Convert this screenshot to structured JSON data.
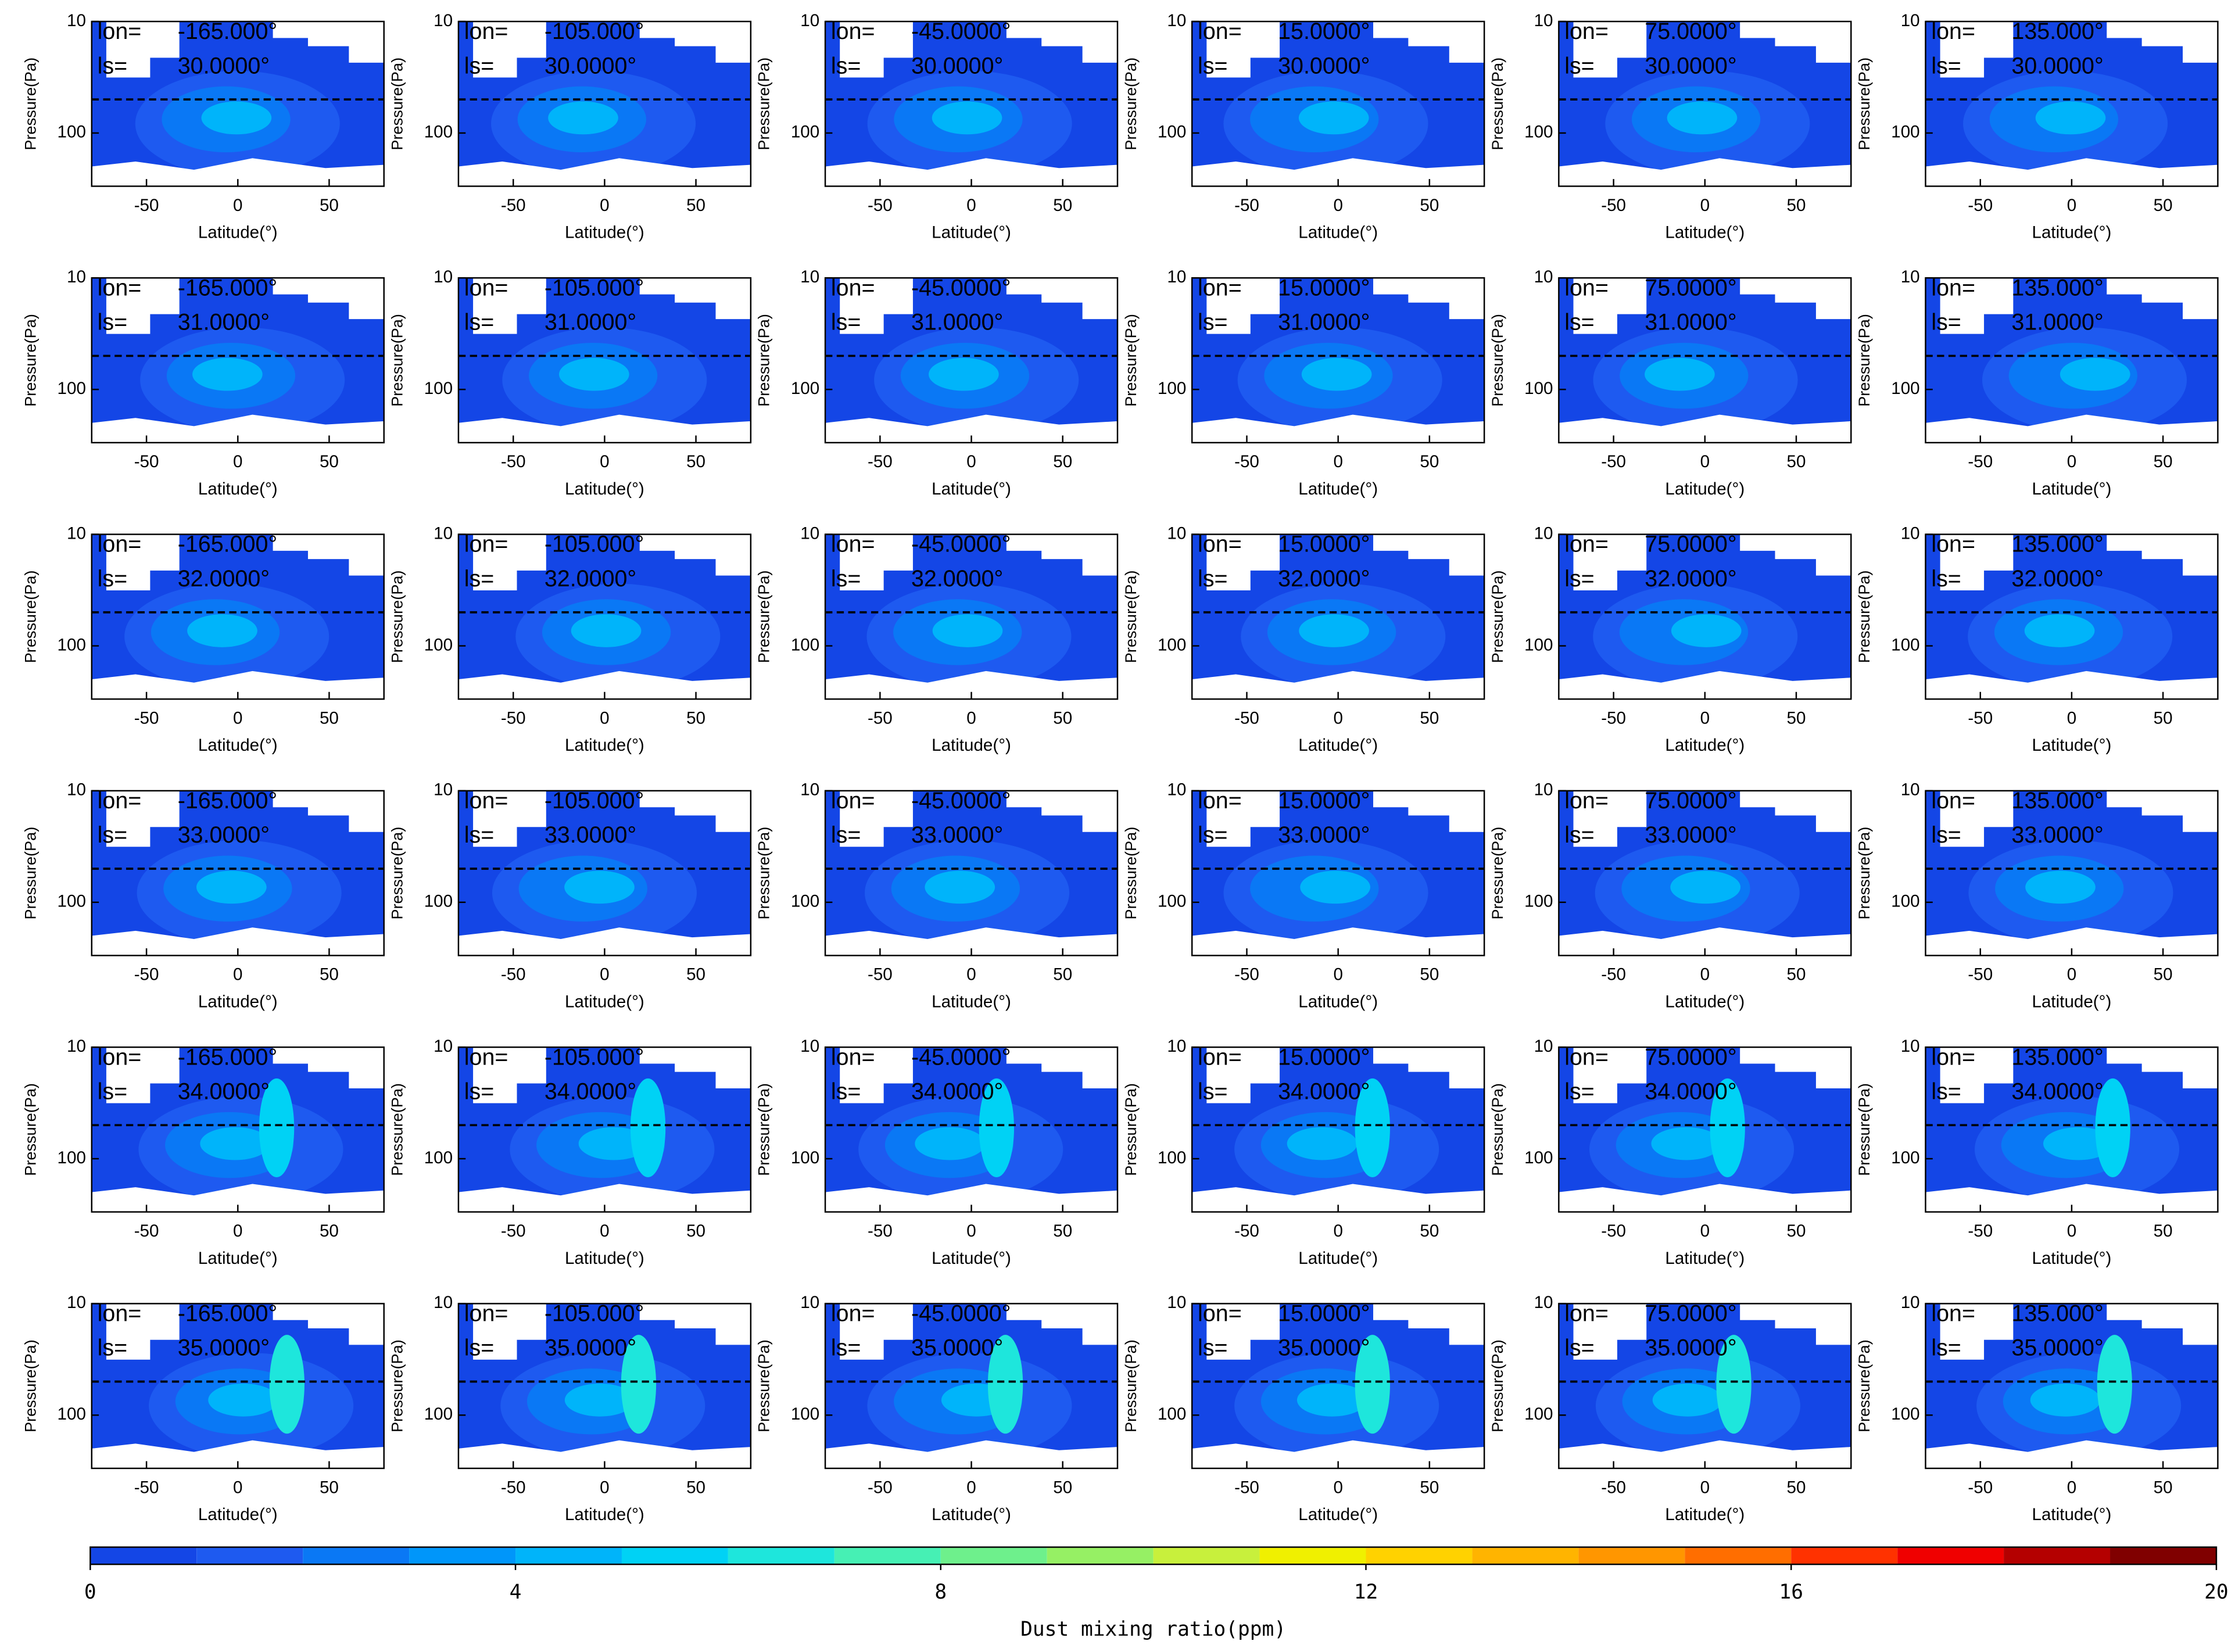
{
  "chart_data": [
    {
      "type": "contour",
      "lon_label": "lon=",
      "lon": "-165.000°",
      "ls_label": "ls=",
      "ls": "30.0000°",
      "xlabel": "Latitude(°)",
      "ylabel": "Pressure(Pa)",
      "xlim": [
        -80,
        80
      ],
      "xticks": [
        -50,
        0,
        50
      ],
      "ylim": [
        300,
        10
      ],
      "yticks": [
        10,
        100
      ],
      "log_y": true,
      "hline": 50
    },
    {
      "type": "contour",
      "lon_label": "lon=",
      "lon": "-105.000°",
      "ls_label": "ls=",
      "ls": "30.0000°",
      "xlabel": "Latitude(°)",
      "ylabel": "Pressure(Pa)",
      "xlim": [
        -80,
        80
      ],
      "xticks": [
        -50,
        0,
        50
      ],
      "ylim": [
        300,
        10
      ],
      "yticks": [
        10,
        100
      ],
      "log_y": true,
      "hline": 50
    },
    {
      "type": "contour",
      "lon_label": "lon=",
      "lon": "-45.0000°",
      "ls_label": "ls=",
      "ls": "30.0000°",
      "xlabel": "Latitude(°)",
      "ylabel": "Pressure(Pa)",
      "xlim": [
        -80,
        80
      ],
      "xticks": [
        -50,
        0,
        50
      ],
      "ylim": [
        300,
        10
      ],
      "yticks": [
        10,
        100
      ],
      "log_y": true,
      "hline": 50
    },
    {
      "type": "contour",
      "lon_label": "lon=",
      "lon": "15.0000°",
      "ls_label": "ls=",
      "ls": "30.0000°",
      "xlabel": "Latitude(°)",
      "ylabel": "Pressure(Pa)",
      "xlim": [
        -80,
        80
      ],
      "xticks": [
        -50,
        0,
        50
      ],
      "ylim": [
        300,
        10
      ],
      "yticks": [
        10,
        100
      ],
      "log_y": true,
      "hline": 50
    },
    {
      "type": "contour",
      "lon_label": "lon=",
      "lon": "75.0000°",
      "ls_label": "ls=",
      "ls": "30.0000°",
      "xlabel": "Latitude(°)",
      "ylabel": "Pressure(Pa)",
      "xlim": [
        -80,
        80
      ],
      "xticks": [
        -50,
        0,
        50
      ],
      "ylim": [
        300,
        10
      ],
      "yticks": [
        10,
        100
      ],
      "log_y": true,
      "hline": 50
    },
    {
      "type": "contour",
      "lon_label": "lon=",
      "lon": "135.000°",
      "ls_label": "ls=",
      "ls": "30.0000°",
      "xlabel": "Latitude(°)",
      "ylabel": "Pressure(Pa)",
      "xlim": [
        -80,
        80
      ],
      "xticks": [
        -50,
        0,
        50
      ],
      "ylim": [
        300,
        10
      ],
      "yticks": [
        10,
        100
      ],
      "log_y": true,
      "hline": 50
    },
    {
      "type": "contour",
      "lon_label": "lon=",
      "lon": "-165.000°",
      "ls_label": "ls=",
      "ls": "31.0000°",
      "xlabel": "Latitude(°)",
      "ylabel": "Pressure(Pa)",
      "xlim": [
        -80,
        80
      ],
      "xticks": [
        -50,
        0,
        50
      ],
      "ylim": [
        300,
        10
      ],
      "yticks": [
        10,
        100
      ],
      "log_y": true,
      "hline": 50
    },
    {
      "type": "contour",
      "lon_label": "lon=",
      "lon": "-105.000°",
      "ls_label": "ls=",
      "ls": "31.0000°",
      "xlabel": "Latitude(°)",
      "ylabel": "Pressure(Pa)",
      "xlim": [
        -80,
        80
      ],
      "xticks": [
        -50,
        0,
        50
      ],
      "ylim": [
        300,
        10
      ],
      "yticks": [
        10,
        100
      ],
      "log_y": true,
      "hline": 50
    },
    {
      "type": "contour",
      "lon_label": "lon=",
      "lon": "-45.0000°",
      "ls_label": "ls=",
      "ls": "31.0000°",
      "xlabel": "Latitude(°)",
      "ylabel": "Pressure(Pa)",
      "xlim": [
        -80,
        80
      ],
      "xticks": [
        -50,
        0,
        50
      ],
      "ylim": [
        300,
        10
      ],
      "yticks": [
        10,
        100
      ],
      "log_y": true,
      "hline": 50
    },
    {
      "type": "contour",
      "lon_label": "lon=",
      "lon": "15.0000°",
      "ls_label": "ls=",
      "ls": "31.0000°",
      "xlabel": "Latitude(°)",
      "ylabel": "Pressure(Pa)",
      "xlim": [
        -80,
        80
      ],
      "xticks": [
        -50,
        0,
        50
      ],
      "ylim": [
        300,
        10
      ],
      "yticks": [
        10,
        100
      ],
      "log_y": true,
      "hline": 50
    },
    {
      "type": "contour",
      "lon_label": "lon=",
      "lon": "75.0000°",
      "ls_label": "ls=",
      "ls": "31.0000°",
      "xlabel": "Latitude(°)",
      "ylabel": "Pressure(Pa)",
      "xlim": [
        -80,
        80
      ],
      "xticks": [
        -50,
        0,
        50
      ],
      "ylim": [
        300,
        10
      ],
      "yticks": [
        10,
        100
      ],
      "log_y": true,
      "hline": 50
    },
    {
      "type": "contour",
      "lon_label": "lon=",
      "lon": "135.000°",
      "ls_label": "ls=",
      "ls": "31.0000°",
      "xlabel": "Latitude(°)",
      "ylabel": "Pressure(Pa)",
      "xlim": [
        -80,
        80
      ],
      "xticks": [
        -50,
        0,
        50
      ],
      "ylim": [
        300,
        10
      ],
      "yticks": [
        10,
        100
      ],
      "log_y": true,
      "hline": 50
    },
    {
      "type": "contour",
      "lon_label": "lon=",
      "lon": "-165.000°",
      "ls_label": "ls=",
      "ls": "32.0000°",
      "xlabel": "Latitude(°)",
      "ylabel": "Pressure(Pa)",
      "xlim": [
        -80,
        80
      ],
      "xticks": [
        -50,
        0,
        50
      ],
      "ylim": [
        300,
        10
      ],
      "yticks": [
        10,
        100
      ],
      "log_y": true,
      "hline": 50
    },
    {
      "type": "contour",
      "lon_label": "lon=",
      "lon": "-105.000°",
      "ls_label": "ls=",
      "ls": "32.0000°",
      "xlabel": "Latitude(°)",
      "ylabel": "Pressure(Pa)",
      "xlim": [
        -80,
        80
      ],
      "xticks": [
        -50,
        0,
        50
      ],
      "ylim": [
        300,
        10
      ],
      "yticks": [
        10,
        100
      ],
      "log_y": true,
      "hline": 50
    },
    {
      "type": "contour",
      "lon_label": "lon=",
      "lon": "-45.0000°",
      "ls_label": "ls=",
      "ls": "32.0000°",
      "xlabel": "Latitude(°)",
      "ylabel": "Pressure(Pa)",
      "xlim": [
        -80,
        80
      ],
      "xticks": [
        -50,
        0,
        50
      ],
      "ylim": [
        300,
        10
      ],
      "yticks": [
        10,
        100
      ],
      "log_y": true,
      "hline": 50
    },
    {
      "type": "contour",
      "lon_label": "lon=",
      "lon": "15.0000°",
      "ls_label": "ls=",
      "ls": "32.0000°",
      "xlabel": "Latitude(°)",
      "ylabel": "Pressure(Pa)",
      "xlim": [
        -80,
        80
      ],
      "xticks": [
        -50,
        0,
        50
      ],
      "ylim": [
        300,
        10
      ],
      "yticks": [
        10,
        100
      ],
      "log_y": true,
      "hline": 50
    },
    {
      "type": "contour",
      "lon_label": "lon=",
      "lon": "75.0000°",
      "ls_label": "ls=",
      "ls": "32.0000°",
      "xlabel": "Latitude(°)",
      "ylabel": "Pressure(Pa)",
      "xlim": [
        -80,
        80
      ],
      "xticks": [
        -50,
        0,
        50
      ],
      "ylim": [
        300,
        10
      ],
      "yticks": [
        10,
        100
      ],
      "log_y": true,
      "hline": 50
    },
    {
      "type": "contour",
      "lon_label": "lon=",
      "lon": "135.000°",
      "ls_label": "ls=",
      "ls": "32.0000°",
      "xlabel": "Latitude(°)",
      "ylabel": "Pressure(Pa)",
      "xlim": [
        -80,
        80
      ],
      "xticks": [
        -50,
        0,
        50
      ],
      "ylim": [
        300,
        10
      ],
      "yticks": [
        10,
        100
      ],
      "log_y": true,
      "hline": 50
    },
    {
      "type": "contour",
      "lon_label": "lon=",
      "lon": "-165.000°",
      "ls_label": "ls=",
      "ls": "33.0000°",
      "xlabel": "Latitude(°)",
      "ylabel": "Pressure(Pa)",
      "xlim": [
        -80,
        80
      ],
      "xticks": [
        -50,
        0,
        50
      ],
      "ylim": [
        300,
        10
      ],
      "yticks": [
        10,
        100
      ],
      "log_y": true,
      "hline": 50
    },
    {
      "type": "contour",
      "lon_label": "lon=",
      "lon": "-105.000°",
      "ls_label": "ls=",
      "ls": "33.0000°",
      "xlabel": "Latitude(°)",
      "ylabel": "Pressure(Pa)",
      "xlim": [
        -80,
        80
      ],
      "xticks": [
        -50,
        0,
        50
      ],
      "ylim": [
        300,
        10
      ],
      "yticks": [
        10,
        100
      ],
      "log_y": true,
      "hline": 50
    },
    {
      "type": "contour",
      "lon_label": "lon=",
      "lon": "-45.0000°",
      "ls_label": "ls=",
      "ls": "33.0000°",
      "xlabel": "Latitude(°)",
      "ylabel": "Pressure(Pa)",
      "xlim": [
        -80,
        80
      ],
      "xticks": [
        -50,
        0,
        50
      ],
      "ylim": [
        300,
        10
      ],
      "yticks": [
        10,
        100
      ],
      "log_y": true,
      "hline": 50
    },
    {
      "type": "contour",
      "lon_label": "lon=",
      "lon": "15.0000°",
      "ls_label": "ls=",
      "ls": "33.0000°",
      "xlabel": "Latitude(°)",
      "ylabel": "Pressure(Pa)",
      "xlim": [
        -80,
        80
      ],
      "xticks": [
        -50,
        0,
        50
      ],
      "ylim": [
        300,
        10
      ],
      "yticks": [
        10,
        100
      ],
      "log_y": true,
      "hline": 50
    },
    {
      "type": "contour",
      "lon_label": "lon=",
      "lon": "75.0000°",
      "ls_label": "ls=",
      "ls": "33.0000°",
      "xlabel": "Latitude(°)",
      "ylabel": "Pressure(Pa)",
      "xlim": [
        -80,
        80
      ],
      "xticks": [
        -50,
        0,
        50
      ],
      "ylim": [
        300,
        10
      ],
      "yticks": [
        10,
        100
      ],
      "log_y": true,
      "hline": 50
    },
    {
      "type": "contour",
      "lon_label": "lon=",
      "lon": "135.000°",
      "ls_label": "ls=",
      "ls": "33.0000°",
      "xlabel": "Latitude(°)",
      "ylabel": "Pressure(Pa)",
      "xlim": [
        -80,
        80
      ],
      "xticks": [
        -50,
        0,
        50
      ],
      "ylim": [
        300,
        10
      ],
      "yticks": [
        10,
        100
      ],
      "log_y": true,
      "hline": 50
    },
    {
      "type": "contour",
      "lon_label": "lon=",
      "lon": "-165.000°",
      "ls_label": "ls=",
      "ls": "34.0000°",
      "xlabel": "Latitude(°)",
      "ylabel": "Pressure(Pa)",
      "xlim": [
        -80,
        80
      ],
      "xticks": [
        -50,
        0,
        50
      ],
      "ylim": [
        300,
        10
      ],
      "yticks": [
        10,
        100
      ],
      "log_y": true,
      "hline": 50
    },
    {
      "type": "contour",
      "lon_label": "lon=",
      "lon": "-105.000°",
      "ls_label": "ls=",
      "ls": "34.0000°",
      "xlabel": "Latitude(°)",
      "ylabel": "Pressure(Pa)",
      "xlim": [
        -80,
        80
      ],
      "xticks": [
        -50,
        0,
        50
      ],
      "ylim": [
        300,
        10
      ],
      "yticks": [
        10,
        100
      ],
      "log_y": true,
      "hline": 50
    },
    {
      "type": "contour",
      "lon_label": "lon=",
      "lon": "-45.0000°",
      "ls_label": "ls=",
      "ls": "34.0000°",
      "xlabel": "Latitude(°)",
      "ylabel": "Pressure(Pa)",
      "xlim": [
        -80,
        80
      ],
      "xticks": [
        -50,
        0,
        50
      ],
      "ylim": [
        300,
        10
      ],
      "yticks": [
        10,
        100
      ],
      "log_y": true,
      "hline": 50
    },
    {
      "type": "contour",
      "lon_label": "lon=",
      "lon": "15.0000°",
      "ls_label": "ls=",
      "ls": "34.0000°",
      "xlabel": "Latitude(°)",
      "ylabel": "Pressure(Pa)",
      "xlim": [
        -80,
        80
      ],
      "xticks": [
        -50,
        0,
        50
      ],
      "ylim": [
        300,
        10
      ],
      "yticks": [
        10,
        100
      ],
      "log_y": true,
      "hline": 50
    },
    {
      "type": "contour",
      "lon_label": "lon=",
      "lon": "75.0000°",
      "ls_label": "ls=",
      "ls": "34.0000°",
      "xlabel": "Latitude(°)",
      "ylabel": "Pressure(Pa)",
      "xlim": [
        -80,
        80
      ],
      "xticks": [
        -50,
        0,
        50
      ],
      "ylim": [
        300,
        10
      ],
      "yticks": [
        10,
        100
      ],
      "log_y": true,
      "hline": 50
    },
    {
      "type": "contour",
      "lon_label": "lon=",
      "lon": "135.000°",
      "ls_label": "ls=",
      "ls": "34.0000°",
      "xlabel": "Latitude(°)",
      "ylabel": "Pressure(Pa)",
      "xlim": [
        -80,
        80
      ],
      "xticks": [
        -50,
        0,
        50
      ],
      "ylim": [
        300,
        10
      ],
      "yticks": [
        10,
        100
      ],
      "log_y": true,
      "hline": 50
    },
    {
      "type": "contour",
      "lon_label": "lon=",
      "lon": "-165.000°",
      "ls_label": "ls=",
      "ls": "35.0000°",
      "xlabel": "Latitude(°)",
      "ylabel": "Pressure(Pa)",
      "xlim": [
        -80,
        80
      ],
      "xticks": [
        -50,
        0,
        50
      ],
      "ylim": [
        300,
        10
      ],
      "yticks": [
        10,
        100
      ],
      "log_y": true,
      "hline": 50
    },
    {
      "type": "contour",
      "lon_label": "lon=",
      "lon": "-105.000°",
      "ls_label": "ls=",
      "ls": "35.0000°",
      "xlabel": "Latitude(°)",
      "ylabel": "Pressure(Pa)",
      "xlim": [
        -80,
        80
      ],
      "xticks": [
        -50,
        0,
        50
      ],
      "ylim": [
        300,
        10
      ],
      "yticks": [
        10,
        100
      ],
      "log_y": true,
      "hline": 50
    },
    {
      "type": "contour",
      "lon_label": "lon=",
      "lon": "-45.0000°",
      "ls_label": "ls=",
      "ls": "35.0000°",
      "xlabel": "Latitude(°)",
      "ylabel": "Pressure(Pa)",
      "xlim": [
        -80,
        80
      ],
      "xticks": [
        -50,
        0,
        50
      ],
      "ylim": [
        300,
        10
      ],
      "yticks": [
        10,
        100
      ],
      "log_y": true,
      "hline": 50
    },
    {
      "type": "contour",
      "lon_label": "lon=",
      "lon": "15.0000°",
      "ls_label": "ls=",
      "ls": "35.0000°",
      "xlabel": "Latitude(°)",
      "ylabel": "Pressure(Pa)",
      "xlim": [
        -80,
        80
      ],
      "xticks": [
        -50,
        0,
        50
      ],
      "ylim": [
        300,
        10
      ],
      "yticks": [
        10,
        100
      ],
      "log_y": true,
      "hline": 50
    },
    {
      "type": "contour",
      "lon_label": "lon=",
      "lon": "75.0000°",
      "ls_label": "ls=",
      "ls": "35.0000°",
      "xlabel": "Latitude(°)",
      "ylabel": "Pressure(Pa)",
      "xlim": [
        -80,
        80
      ],
      "xticks": [
        -50,
        0,
        50
      ],
      "ylim": [
        300,
        10
      ],
      "yticks": [
        10,
        100
      ],
      "log_y": true,
      "hline": 50
    },
    {
      "type": "contour",
      "lon_label": "lon=",
      "lon": "135.000°",
      "ls_label": "ls=",
      "ls": "35.0000°",
      "xlabel": "Latitude(°)",
      "ylabel": "Pressure(Pa)",
      "xlim": [
        -80,
        80
      ],
      "xticks": [
        -50,
        0,
        50
      ],
      "ylim": [
        300,
        10
      ],
      "yticks": [
        10,
        100
      ],
      "log_y": true,
      "hline": 50
    },
    {
      "type": "colorbar",
      "xlabel": "Dust mixing ratio(ppm)",
      "xlim": [
        0,
        20
      ],
      "xticks": [
        0,
        4,
        8,
        12,
        16,
        20
      ],
      "bins": [
        0,
        1,
        2,
        3,
        4,
        5,
        6,
        7,
        8,
        9,
        10,
        11,
        12,
        13,
        14,
        15,
        16,
        17,
        18,
        19,
        20
      ],
      "colors": [
        "#1446e6",
        "#1e5af0",
        "#0a78f5",
        "#0096fa",
        "#00b4fa",
        "#00d2f5",
        "#1ee6dc",
        "#46f0b4",
        "#6ef08c",
        "#96f064",
        "#c8f03c",
        "#f0f000",
        "#ffd200",
        "#ffb400",
        "#ff9600",
        "#ff6e00",
        "#ff3200",
        "#f00000",
        "#b40000",
        "#800000"
      ]
    }
  ]
}
